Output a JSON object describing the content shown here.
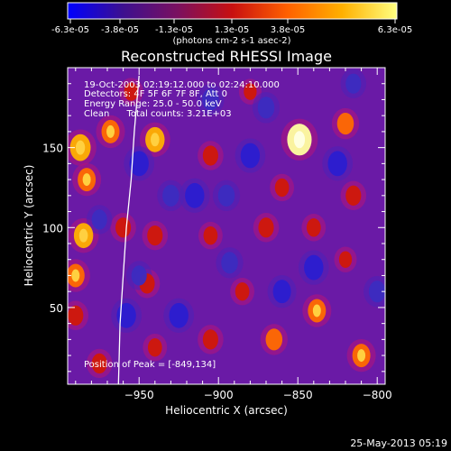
{
  "chart_data": {
    "type": "heatmap",
    "title": "Reconstructed RHESSI Image",
    "xlabel": "Heliocentric X (arcsec)",
    "ylabel": "Heliocentric Y (arcsec)",
    "xlim": [
      -995,
      -795
    ],
    "ylim": [
      2,
      200
    ],
    "xticks": [
      -950,
      -900,
      -850,
      -800
    ],
    "yticks": [
      50,
      100,
      150
    ],
    "colorbar": {
      "ticks": [
        "-6.3e-05",
        "-3.8e-05",
        "-1.3e-05",
        "1.3e-05",
        "3.8e-05",
        "6.3e-05"
      ],
      "range": [
        -6.3e-05,
        6.3e-05
      ],
      "unit_label": "(photons cm-2 s-1 asec-2)",
      "colors": [
        "#0000ff",
        "#3c1090",
        "#7a1060",
        "#c81010",
        "#ff6000",
        "#ffb000",
        "#ffff80"
      ]
    },
    "annotations": [
      "19-Oct-2003 02:19:12.000 to 02:24:10.000",
      "Detectors: 4F 5F 6F 7F 8F, Att 0",
      "Energy Range: 25.0 - 50.0 keV",
      "Clean      Total counts: 3.21E+03"
    ],
    "peak_label": "Position of Peak = [-849,134]",
    "peak": {
      "x": -849,
      "y": 134
    },
    "limb_curve": [
      [
        -963,
        2
      ],
      [
        -962,
        40
      ],
      [
        -960,
        70
      ],
      [
        -958,
        100
      ],
      [
        -955,
        130
      ],
      [
        -953,
        160
      ],
      [
        -950,
        195
      ]
    ],
    "blobs": [
      {
        "x": -849,
        "y": 155,
        "v": 6e-05
      },
      {
        "x": -987,
        "y": 150,
        "v": 4.5e-05
      },
      {
        "x": -983,
        "y": 130,
        "v": 3.5e-05
      },
      {
        "x": -968,
        "y": 160,
        "v": 3.5e-05
      },
      {
        "x": -940,
        "y": 155,
        "v": 4e-05
      },
      {
        "x": -905,
        "y": 145,
        "v": 2.5e-05
      },
      {
        "x": -820,
        "y": 165,
        "v": 3e-05
      },
      {
        "x": -985,
        "y": 95,
        "v": 4e-05
      },
      {
        "x": -990,
        "y": 70,
        "v": 3.5e-05
      },
      {
        "x": -990,
        "y": 45,
        "v": 2.5e-05
      },
      {
        "x": -960,
        "y": 100,
        "v": 2.5e-05
      },
      {
        "x": -940,
        "y": 95,
        "v": 2.5e-05
      },
      {
        "x": -945,
        "y": 65,
        "v": 2.5e-05
      },
      {
        "x": -860,
        "y": 125,
        "v": 2e-05
      },
      {
        "x": -870,
        "y": 100,
        "v": 2.5e-05
      },
      {
        "x": -840,
        "y": 100,
        "v": 2e-05
      },
      {
        "x": -905,
        "y": 95,
        "v": 2e-05
      },
      {
        "x": -815,
        "y": 120,
        "v": 2.5e-05
      },
      {
        "x": -885,
        "y": 60,
        "v": 2e-05
      },
      {
        "x": -838,
        "y": 48,
        "v": 3.5e-05
      },
      {
        "x": -865,
        "y": 30,
        "v": 3e-05
      },
      {
        "x": -905,
        "y": 30,
        "v": 2.5e-05
      },
      {
        "x": -940,
        "y": 25,
        "v": 2e-05
      },
      {
        "x": -810,
        "y": 20,
        "v": 3.5e-05
      },
      {
        "x": -820,
        "y": 80,
        "v": 1.5e-05
      },
      {
        "x": -975,
        "y": 15,
        "v": 2.5e-05
      },
      {
        "x": -955,
        "y": 185,
        "v": 2e-05
      },
      {
        "x": -880,
        "y": 185,
        "v": 1.5e-05
      },
      {
        "x": -950,
        "y": 140,
        "v": -4e-05
      },
      {
        "x": -915,
        "y": 120,
        "v": -4e-05
      },
      {
        "x": -930,
        "y": 120,
        "v": -3e-05
      },
      {
        "x": -895,
        "y": 120,
        "v": -3e-05
      },
      {
        "x": -880,
        "y": 145,
        "v": -4e-05
      },
      {
        "x": -870,
        "y": 175,
        "v": -3e-05
      },
      {
        "x": -825,
        "y": 140,
        "v": -4e-05
      },
      {
        "x": -840,
        "y": 75,
        "v": -4e-05
      },
      {
        "x": -860,
        "y": 60,
        "v": -3.5e-05
      },
      {
        "x": -925,
        "y": 45,
        "v": -4e-05
      },
      {
        "x": -958,
        "y": 45,
        "v": -4e-05
      },
      {
        "x": -950,
        "y": 70,
        "v": -2.5e-05
      },
      {
        "x": -893,
        "y": 78,
        "v": -3e-05
      },
      {
        "x": -905,
        "y": 180,
        "v": -3e-05
      },
      {
        "x": -815,
        "y": 190,
        "v": -2.5e-05
      },
      {
        "x": -975,
        "y": 105,
        "v": -2.5e-05
      },
      {
        "x": -800,
        "y": 60,
        "v": -3e-05
      }
    ]
  },
  "footer": {
    "timestamp": "25-May-2013 05:19"
  }
}
